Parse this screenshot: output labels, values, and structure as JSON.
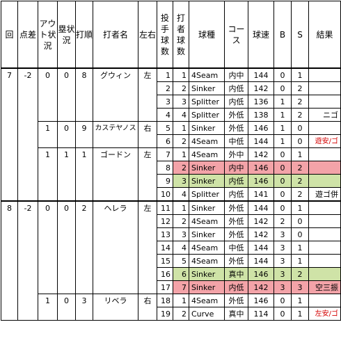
{
  "headers": [
    "回",
    "点差",
    "アウト状況",
    "塁状況",
    "打順",
    "打者名",
    "左右",
    "投手球数",
    "打者球数",
    "球種",
    "コース",
    "球速",
    "B",
    "S",
    "結果"
  ],
  "innings": [
    {
      "inning": "7",
      "diff": "-2",
      "batters": [
        {
          "outs": "0",
          "bases": "0",
          "order": "8",
          "name": "グウィン",
          "hand": "左",
          "pitches": [
            {
              "p": "1",
              "b": "1",
              "type": "4Seam",
              "loc": "内中",
              "speed": "144",
              "ball": "0",
              "strike": "1",
              "result": "",
              "hl": ""
            },
            {
              "p": "2",
              "b": "2",
              "type": "Sinker",
              "loc": "内低",
              "speed": "142",
              "ball": "0",
              "strike": "2",
              "result": "",
              "hl": ""
            },
            {
              "p": "3",
              "b": "3",
              "type": "Splitter",
              "loc": "内低",
              "speed": "136",
              "ball": "1",
              "strike": "2",
              "result": "",
              "hl": ""
            },
            {
              "p": "4",
              "b": "4",
              "type": "Splitter",
              "loc": "外低",
              "speed": "138",
              "ball": "1",
              "strike": "2",
              "result": "ニゴ",
              "hl": ""
            }
          ]
        },
        {
          "outs": "1",
          "bases": "0",
          "order": "9",
          "name": "カステヤノス",
          "hand": "右",
          "pitches": [
            {
              "p": "5",
              "b": "1",
              "type": "Sinker",
              "loc": "外低",
              "speed": "146",
              "ball": "1",
              "strike": "0",
              "result": "",
              "hl": ""
            },
            {
              "p": "6",
              "b": "2",
              "type": "4Seam",
              "loc": "中低",
              "speed": "144",
              "ball": "1",
              "strike": "0",
              "result": "遊安/ゴ",
              "hl": "",
              "red": true
            }
          ]
        },
        {
          "outs": "1",
          "bases": "1",
          "order": "1",
          "name": "ゴードン",
          "hand": "左",
          "pitches": [
            {
              "p": "7",
              "b": "1",
              "type": "4Seam",
              "loc": "外中",
              "speed": "142",
              "ball": "0",
              "strike": "1",
              "result": "",
              "hl": ""
            },
            {
              "p": "8",
              "b": "2",
              "type": "Sinker",
              "loc": "内中",
              "speed": "146",
              "ball": "0",
              "strike": "2",
              "result": "",
              "hl": "red"
            },
            {
              "p": "9",
              "b": "3",
              "type": "Sinker",
              "loc": "内低",
              "speed": "146",
              "ball": "0",
              "strike": "2",
              "result": "",
              "hl": "green"
            },
            {
              "p": "10",
              "b": "4",
              "type": "Splitter",
              "loc": "内低",
              "speed": "141",
              "ball": "0",
              "strike": "2",
              "result": "遊ゴ併",
              "hl": ""
            }
          ]
        }
      ]
    },
    {
      "inning": "8",
      "diff": "-2",
      "batters": [
        {
          "outs": "0",
          "bases": "0",
          "order": "2",
          "name": "ヘレラ",
          "hand": "左",
          "pitches": [
            {
              "p": "11",
              "b": "1",
              "type": "Sinker",
              "loc": "外低",
              "speed": "144",
              "ball": "0",
              "strike": "1",
              "result": "",
              "hl": ""
            },
            {
              "p": "12",
              "b": "2",
              "type": "4Seam",
              "loc": "外低",
              "speed": "142",
              "ball": "2",
              "strike": "0",
              "result": "",
              "hl": ""
            },
            {
              "p": "13",
              "b": "3",
              "type": "Sinker",
              "loc": "外低",
              "speed": "142",
              "ball": "3",
              "strike": "0",
              "result": "",
              "hl": ""
            },
            {
              "p": "14",
              "b": "4",
              "type": "4Seam",
              "loc": "中低",
              "speed": "144",
              "ball": "3",
              "strike": "1",
              "result": "",
              "hl": ""
            },
            {
              "p": "15",
              "b": "5",
              "type": "4Seam",
              "loc": "外低",
              "speed": "144",
              "ball": "3",
              "strike": "1",
              "result": "",
              "hl": ""
            },
            {
              "p": "16",
              "b": "6",
              "type": "Sinker",
              "loc": "真中",
              "speed": "146",
              "ball": "3",
              "strike": "2",
              "result": "",
              "hl": "green"
            },
            {
              "p": "17",
              "b": "7",
              "type": "Sinker",
              "loc": "内低",
              "speed": "142",
              "ball": "3",
              "strike": "3",
              "result": "空三振",
              "hl": "red"
            }
          ]
        },
        {
          "outs": "1",
          "bases": "0",
          "order": "3",
          "name": "リベラ",
          "hand": "右",
          "pitches": [
            {
              "p": "18",
              "b": "1",
              "type": "4Seam",
              "loc": "外低",
              "speed": "146",
              "ball": "0",
              "strike": "1",
              "result": "",
              "hl": ""
            },
            {
              "p": "19",
              "b": "2",
              "type": "Curve",
              "loc": "真中",
              "speed": "114",
              "ball": "0",
              "strike": "1",
              "result": "左安/ゴ",
              "hl": "",
              "red": true
            }
          ]
        }
      ]
    }
  ]
}
